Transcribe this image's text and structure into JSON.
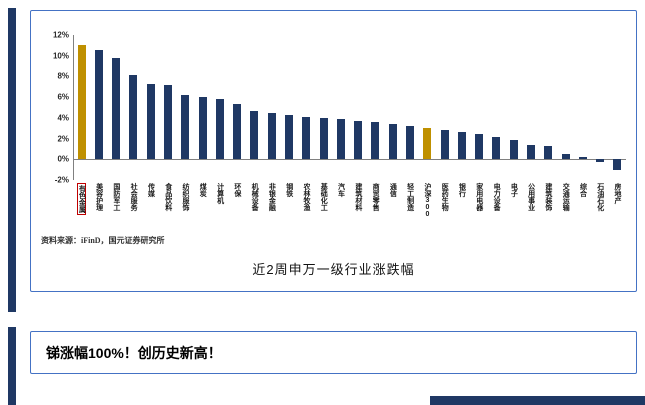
{
  "page": {
    "chart_title": "近2周申万一级行业涨跌幅",
    "source_note": "资料来源：iFinD，国元证券研究所",
    "headline": "锑涨幅100%！创历史新高！"
  },
  "colors": {
    "bar": "#1F3864",
    "highlight": "#BF9000",
    "panel_border": "#4472C4",
    "accent_stripe": "#1F3864",
    "boxed_label_border": "#C00000"
  },
  "chart_data": {
    "type": "bar",
    "title": "近2周申万一级行业涨跌幅",
    "xlabel": "",
    "ylabel": "",
    "ylim": [
      -2,
      12
    ],
    "yticks": [
      12,
      10,
      8,
      6,
      4,
      2,
      0,
      -2
    ],
    "ytick_suffix": "%",
    "grid": false,
    "legend": "none",
    "categories": [
      "有色金属",
      "美容护理",
      "国防军工",
      "社会服务",
      "传媒",
      "食品饮料",
      "纺织服饰",
      "煤炭",
      "计算机",
      "环保",
      "机械设备",
      "非银金融",
      "钢铁",
      "农林牧渔",
      "基础化工",
      "汽车",
      "建筑材料",
      "商贸零售",
      "通信",
      "轻工制造",
      "沪深300",
      "医药生物",
      "银行",
      "家用电器",
      "电力设备",
      "电子",
      "公用事业",
      "建筑装饰",
      "交通运输",
      "综合",
      "石油石化",
      "房地产"
    ],
    "values": [
      11.0,
      10.6,
      9.8,
      8.1,
      7.3,
      7.2,
      6.2,
      6.0,
      5.8,
      5.3,
      4.7,
      4.5,
      4.3,
      4.1,
      4.0,
      3.9,
      3.7,
      3.6,
      3.4,
      3.2,
      3.0,
      2.8,
      2.6,
      2.4,
      2.2,
      1.9,
      1.4,
      1.3,
      0.5,
      0.2,
      -0.3,
      -1.0
    ],
    "highlight_indices": [
      0,
      20
    ],
    "boxed_category_index": 0
  }
}
